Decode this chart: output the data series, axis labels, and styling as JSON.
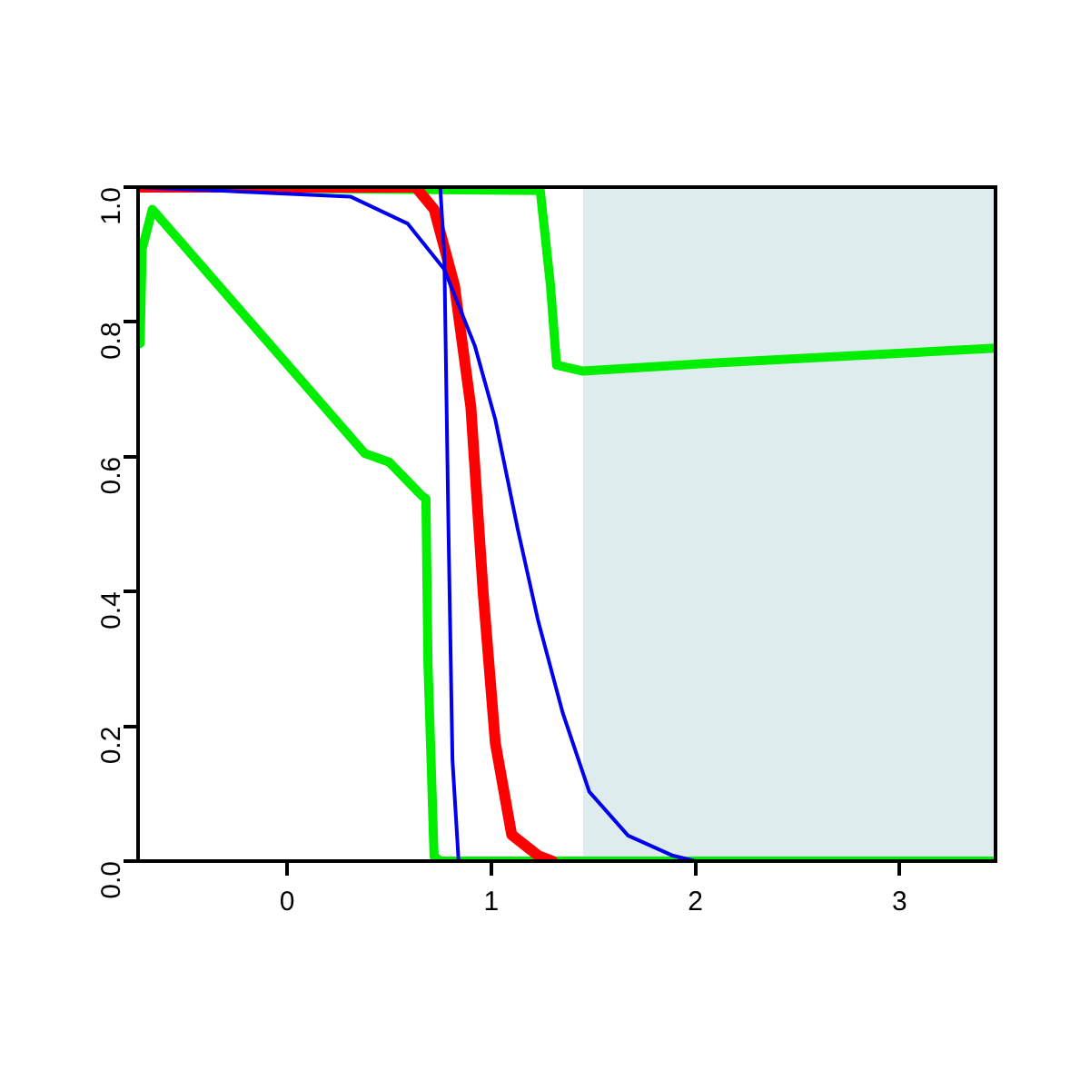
{
  "chart_data": {
    "type": "line",
    "xlim": [
      -0.73,
      3.47
    ],
    "ylim": [
      0,
      1
    ],
    "xticks": [
      0,
      1,
      2,
      3
    ],
    "yticks": [
      {
        "value": 0,
        "label": "0.0"
      },
      {
        "value": 0.2,
        "label": "0.2"
      },
      {
        "value": 0.4,
        "label": "0.4"
      },
      {
        "value": 0.6,
        "label": "0.6"
      },
      {
        "value": 0.8,
        "label": "0.8"
      },
      {
        "value": 1,
        "label": "1.0"
      }
    ],
    "grid": false,
    "legend": false,
    "marker": "none",
    "line_style": "solid",
    "bands": [
      {
        "axis": "x",
        "from": 1.45,
        "to": 3.47,
        "color": "#deeced"
      }
    ],
    "series": [
      {
        "color": "#0000ee",
        "x": [
          -0.73,
          0.31,
          0.59,
          0.77,
          0.92,
          1.02,
          1.13,
          1.23,
          1.35,
          1.48,
          1.67,
          1.89,
          2.0
        ],
        "values": [
          1,
          0.986,
          0.946,
          0.878,
          0.764,
          0.655,
          0.492,
          0.356,
          0.22,
          0.103,
          0.038,
          0.008,
          0
        ]
      },
      {
        "color": "#0000ee",
        "x": [
          -0.73,
          0.75,
          0.77,
          0.79,
          0.81,
          0.84
        ],
        "values": [
          1,
          1,
          0.9,
          0.5,
          0.15,
          0
        ]
      },
      {
        "color": "#ff0000",
        "x": [
          -0.73,
          0.63,
          0.72,
          0.82,
          0.9,
          0.96,
          1.02,
          1.1,
          1.23,
          1.3
        ],
        "values": [
          1,
          1,
          0.967,
          0.854,
          0.674,
          0.4,
          0.175,
          0.039,
          0.008,
          0
        ]
      },
      {
        "color": "#00ee00",
        "x": [
          -0.72,
          -0.71,
          -0.66,
          0.38,
          0.5,
          0.66,
          0.68,
          0.69,
          0.72,
          0.75,
          3.47
        ],
        "values": [
          0.768,
          0.908,
          0.967,
          0.605,
          0.592,
          0.542,
          0.538,
          0.293,
          0.007,
          0,
          0
        ]
      },
      {
        "color": "#00ee00",
        "x": [
          -0.73,
          1.24,
          1.29,
          1.32,
          1.45,
          2.08,
          3.47
        ],
        "values": [
          1,
          0.995,
          0.854,
          0.736,
          0.727,
          0.739,
          0.761
        ]
      }
    ]
  }
}
